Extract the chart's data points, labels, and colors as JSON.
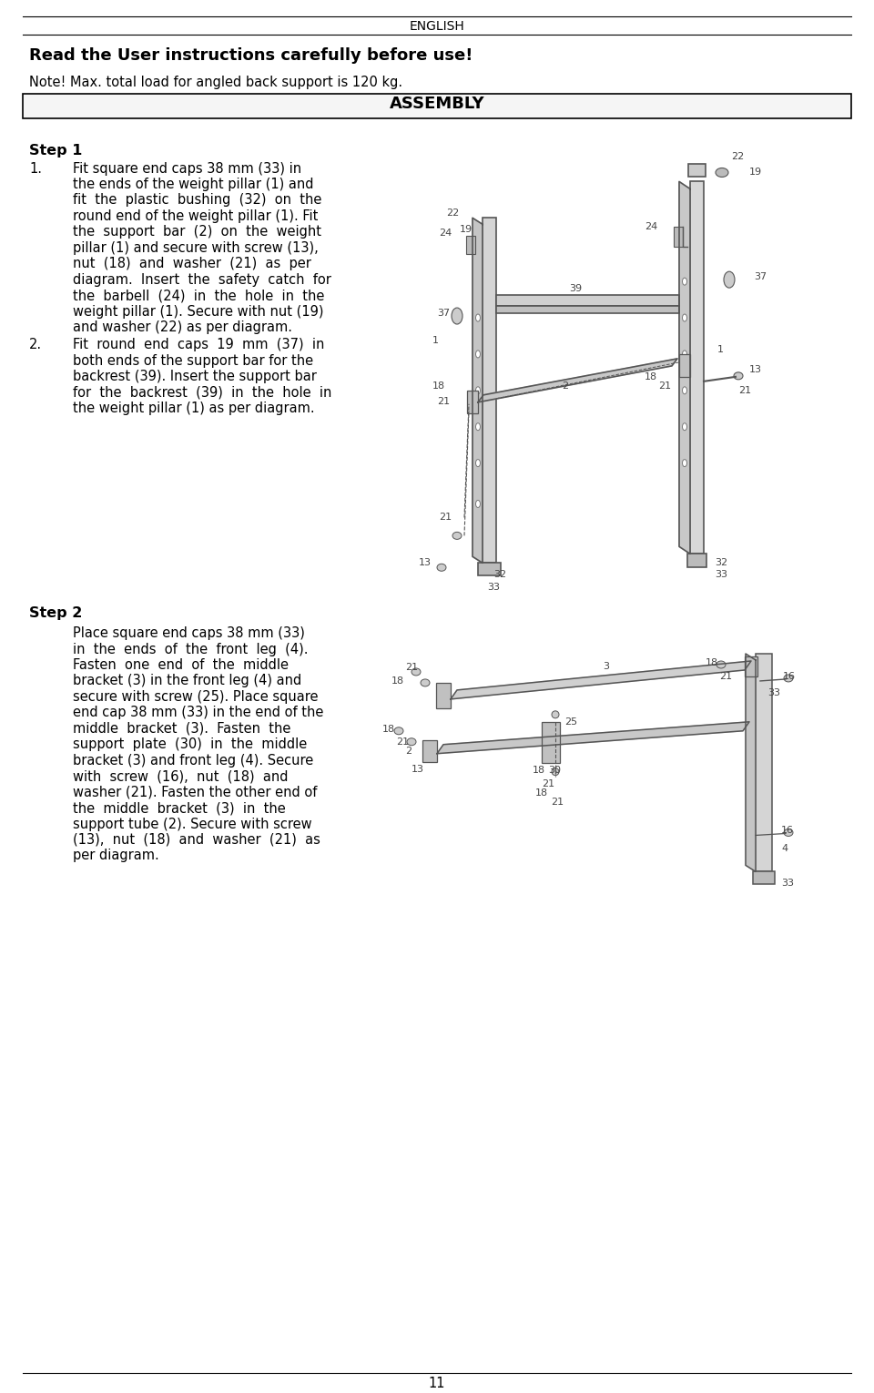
{
  "page_header": "ENGLISH",
  "warning_bold": "Read the User instructions carefully before use!",
  "note_text": "Note! Max. total load for angled back support is 120 kg.",
  "assembly_header": "ASSEMBLY",
  "step1_header": "Step 1",
  "step1_item1_num": "1.",
  "step1_item1_lines": [
    "Fit square end caps 38 mm (33) in",
    "the ends of the weight pillar (1) and",
    "fit  the  plastic  bushing  (32)  on  the",
    "round end of the weight pillar (1). Fit",
    "the  support  bar  (2)  on  the  weight",
    "pillar (1) and secure with screw (13),",
    "nut  (18)  and  washer  (21)  as  per",
    "diagram.  Insert  the  safety  catch  for",
    "the  barbell  (24)  in  the  hole  in  the",
    "weight pillar (1). Secure with nut (19)",
    "and washer (22) as per diagram."
  ],
  "step1_item2_num": "2.",
  "step1_item2_lines": [
    "Fit  round  end  caps  19  mm  (37)  in",
    "both ends of the support bar for the",
    "backrest (39). Insert the support bar",
    "for  the  backrest  (39)  in  the  hole  in",
    "the weight pillar (1) as per diagram."
  ],
  "step2_header": "Step 2",
  "step2_lines": [
    "Place square end caps 38 mm (33)",
    "in  the  ends  of  the  front  leg  (4).",
    "Fasten  one  end  of  the  middle",
    "bracket (3) in the front leg (4) and",
    "secure with screw (25). Place square",
    "end cap 38 mm (33) in the end of the",
    "middle  bracket  (3).  Fasten  the",
    "support  plate  (30)  in  the  middle",
    "bracket (3) and front leg (4). Secure",
    "with  screw  (16),  nut  (18)  and",
    "washer (21). Fasten the other end of",
    "the  middle  bracket  (3)  in  the",
    "support tube (2). Secure with screw",
    "(13),  nut  (18)  and  washer  (21)  as",
    "per diagram."
  ],
  "page_number": "11",
  "bg_color": "#ffffff",
  "text_color": "#000000",
  "line_color": "#000000",
  "diagram_color": "#555555",
  "diagram_light": "#888888"
}
